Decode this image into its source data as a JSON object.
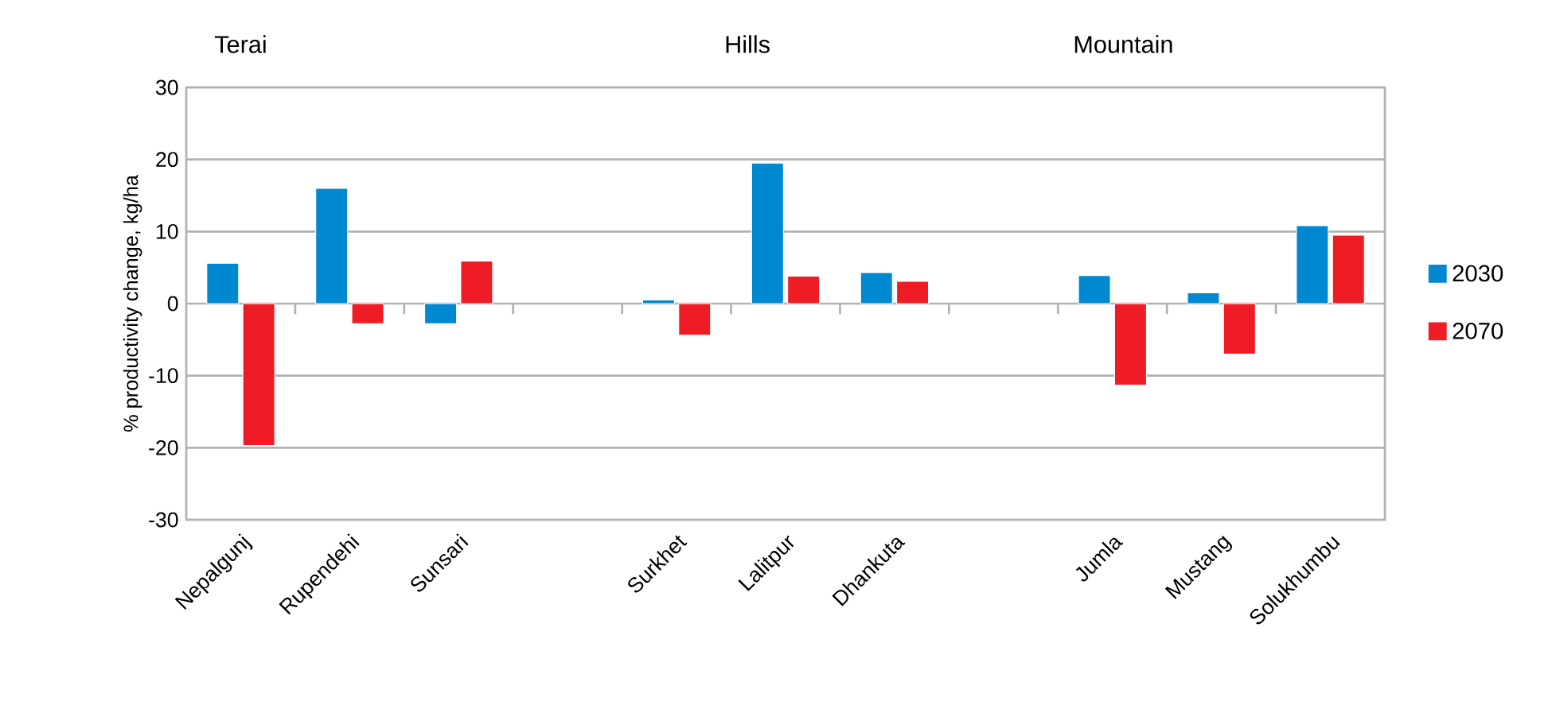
{
  "chart_data": {
    "type": "bar",
    "ylabel": "% productivity change, kg/ha",
    "annotations": [
      "Terai",
      "Hills",
      "Mountain"
    ],
    "categories": [
      "Nepalgunj",
      "Rupendehi",
      "Sunsari",
      null,
      "Surkhet",
      "Lalitpur",
      "Dhankuta",
      null,
      "Jumla",
      "Mustang",
      "Solukhumbu"
    ],
    "series": [
      {
        "name": "2030",
        "color": "#0088d1",
        "values": [
          5.6,
          16.0,
          -2.8,
          null,
          0.5,
          19.5,
          4.3,
          null,
          3.9,
          1.5,
          10.8
        ]
      },
      {
        "name": "2070",
        "color": "#ee1c25",
        "values": [
          -19.7,
          -2.8,
          5.9,
          null,
          -4.4,
          3.8,
          3.1,
          null,
          -11.3,
          -7.0,
          9.5
        ]
      }
    ],
    "ylim": [
      -30,
      30
    ],
    "yticks": [
      -30,
      -20,
      -10,
      0,
      10,
      20,
      30
    ],
    "grid": "y",
    "legend": "right"
  }
}
